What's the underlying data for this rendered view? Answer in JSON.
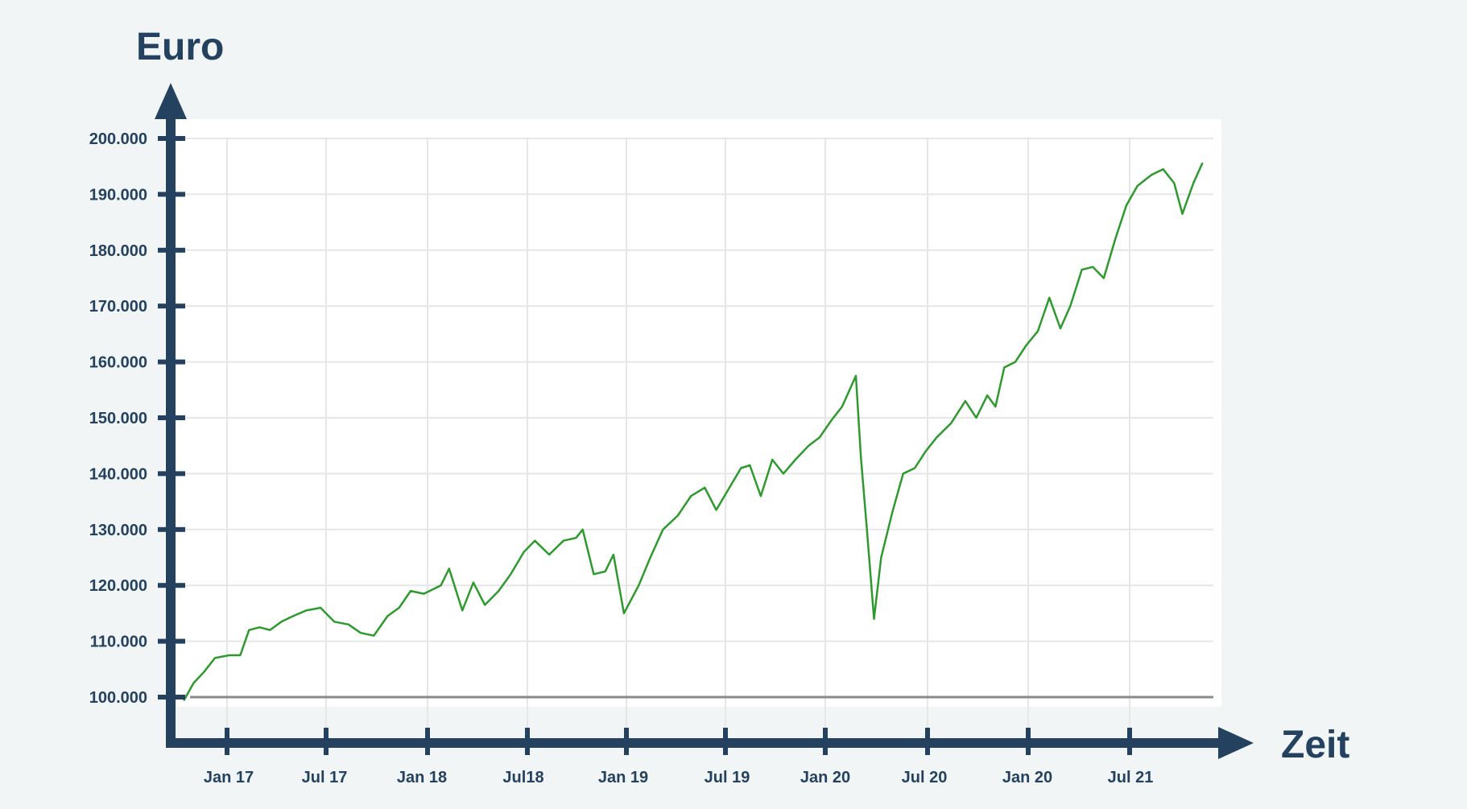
{
  "chart_data": {
    "type": "line",
    "ylabel": "Euro",
    "xlabel": "Zeit",
    "ylim": [
      96000,
      203000
    ],
    "x_ticks": [
      "Jan 17",
      "Jul 17",
      "Jan 18",
      "Jul18",
      "Jan 19",
      "Jul 19",
      "Jan 20",
      "Jul 20",
      "Jan 20",
      "Jul 21"
    ],
    "y_ticks": [
      "100.000",
      "110.000",
      "120.000",
      "130.000",
      "140.000",
      "150.000",
      "160.000",
      "170.000",
      "180.000",
      "190.000",
      "200.000"
    ],
    "y_tick_values": [
      100000,
      110000,
      120000,
      130000,
      140000,
      150000,
      160000,
      170000,
      180000,
      190000,
      200000
    ],
    "baseline": 100000,
    "grid": true,
    "series": [
      {
        "color": "#2e9a2e",
        "x": [
          "2016-10-15",
          "2016-11-01",
          "2016-11-20",
          "2016-12-10",
          "2017-01-05",
          "2017-01-25",
          "2017-02-10",
          "2017-03-01",
          "2017-03-20",
          "2017-04-10",
          "2017-05-01",
          "2017-05-25",
          "2017-06-20",
          "2017-07-15",
          "2017-08-10",
          "2017-09-01",
          "2017-09-25",
          "2017-10-20",
          "2017-11-10",
          "2017-12-01",
          "2017-12-25",
          "2018-01-25",
          "2018-02-09",
          "2018-03-05",
          "2018-03-25",
          "2018-04-15",
          "2018-05-10",
          "2018-06-01",
          "2018-06-25",
          "2018-07-15",
          "2018-08-10",
          "2018-09-05",
          "2018-09-28",
          "2018-10-10",
          "2018-10-30",
          "2018-11-20",
          "2018-12-05",
          "2018-12-24",
          "2019-01-20",
          "2019-02-10",
          "2019-03-05",
          "2019-04-01",
          "2019-04-25",
          "2019-05-20",
          "2019-06-10",
          "2019-07-01",
          "2019-07-25",
          "2019-08-10",
          "2019-08-30",
          "2019-09-20",
          "2019-10-10",
          "2019-11-01",
          "2019-11-25",
          "2019-12-15",
          "2020-01-05",
          "2020-01-25",
          "2020-02-19",
          "2020-02-28",
          "2020-03-10",
          "2020-03-23",
          "2020-04-05",
          "2020-04-25",
          "2020-05-15",
          "2020-06-05",
          "2020-06-25",
          "2020-07-15",
          "2020-08-10",
          "2020-09-05",
          "2020-09-25",
          "2020-10-15",
          "2020-10-30",
          "2020-11-15",
          "2020-12-05",
          "2020-12-25",
          "2021-01-15",
          "2021-02-05",
          "2021-02-25",
          "2021-03-15",
          "2021-04-05",
          "2021-04-25",
          "2021-05-15",
          "2021-06-05",
          "2021-06-25",
          "2021-07-15",
          "2021-08-10",
          "2021-08-31",
          "2021-09-20",
          "2021-10-05",
          "2021-10-25",
          "2021-11-10"
        ],
        "y": [
          99500,
          102500,
          104500,
          107000,
          107500,
          107500,
          112000,
          112500,
          112000,
          113500,
          114500,
          115500,
          116000,
          113500,
          113000,
          111500,
          111000,
          114500,
          116000,
          119000,
          118500,
          120000,
          123000,
          115500,
          120500,
          116500,
          119000,
          122000,
          126000,
          128000,
          125500,
          128000,
          128500,
          130000,
          122000,
          122500,
          125500,
          115000,
          120000,
          125000,
          130000,
          132500,
          136000,
          137500,
          133500,
          137000,
          141000,
          141500,
          136000,
          142500,
          140000,
          142500,
          145000,
          146500,
          149500,
          152000,
          157500,
          143000,
          130000,
          114000,
          125000,
          133000,
          140000,
          141000,
          144000,
          146500,
          149000,
          153000,
          150000,
          154000,
          152000,
          159000,
          160000,
          163000,
          165500,
          171500,
          166000,
          170000,
          176500,
          177000,
          175000,
          182000,
          188000,
          191500,
          193500,
          194500,
          192000,
          186500,
          192000,
          195500
        ]
      }
    ]
  }
}
